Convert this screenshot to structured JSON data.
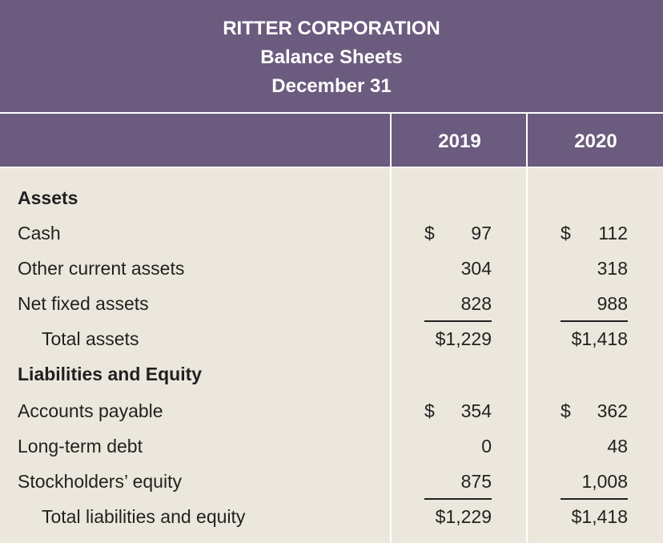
{
  "header": {
    "company": "RITTER CORPORATION",
    "statement": "Balance Sheets",
    "date": "December 31"
  },
  "columns": {
    "year1": "2019",
    "year2": "2020"
  },
  "rows": [
    {
      "label": "Assets",
      "bold": true,
      "y2019": "",
      "y2020": ""
    },
    {
      "label": "Cash",
      "dollar": true,
      "y2019": "97",
      "y2020": "112"
    },
    {
      "label": "Other current assets",
      "y2019": "304",
      "y2020": "318"
    },
    {
      "label": "Net fixed assets",
      "y2019": "828",
      "y2020": "988"
    },
    {
      "label": "Total assets",
      "y2019": "$1,229",
      "y2020": "$1,418"
    },
    {
      "label": "Liabilities and Equity",
      "bold": true,
      "y2019": "",
      "y2020": ""
    },
    {
      "label": "Accounts payable",
      "dollar": true,
      "y2019": "354",
      "y2020": "362"
    },
    {
      "label": "Long-term debt",
      "y2019": "0",
      "y2020": "48"
    },
    {
      "label": "Stockholders’ equity",
      "y2019": "875",
      "y2020": "1,008"
    },
    {
      "label": "Total liabilities and equity",
      "y2019": "$1,229",
      "y2020": "$1,418"
    }
  ],
  "currency_symbol": "$",
  "colors": {
    "header": "#6b5b7e",
    "body": "#ece7dc"
  }
}
